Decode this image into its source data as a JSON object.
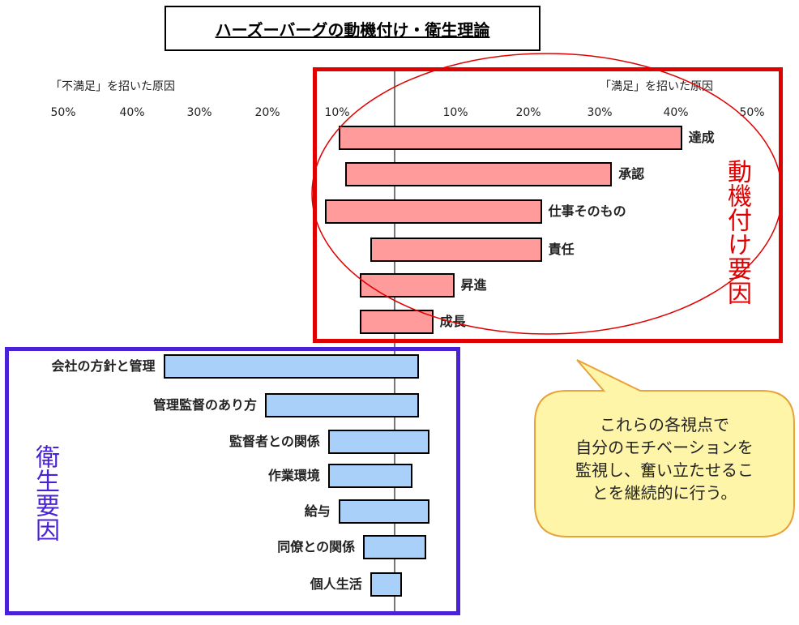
{
  "title": "ハーズーバーグの動機付け・衛生理論",
  "left_caption": "「不満足」を招いた原因",
  "right_caption": "「満足」を招いた原因",
  "left_ticks": [
    "50%",
    "40%",
    "30%",
    "20%",
    "10%"
  ],
  "right_ticks": [
    "10%",
    "20%",
    "30%",
    "40%",
    "50%"
  ],
  "motivator_label": "動機付け要因",
  "hygiene_label": "衛生要因",
  "callout": [
    "これらの各視点で",
    "自分のモチベーションを",
    "監視し、奮い立たせるこ",
    "とを継続的に行う。"
  ],
  "colors": {
    "motivator": "#ff9b9b",
    "hygiene": "#a8d0f8",
    "motivator_frame": "#e00000",
    "hygiene_frame": "#4a22d6",
    "callout_fill": "#fff5a8",
    "callout_border": "#e8a23a"
  },
  "chart_data": {
    "type": "bar",
    "orientation": "horizontal-diverging",
    "title": "ハーズーバーグの動機付け・衛生理論",
    "xlabel_left": "「不満足」を招いた原因",
    "xlabel_right": "「満足」を招いた原因",
    "xlim": [
      -50,
      50
    ],
    "series": [
      {
        "group": "motivator",
        "categories": [
          "達成",
          "承認",
          "仕事そのもの",
          "責任",
          "昇進",
          "成長"
        ],
        "dissatisfaction": [
          8,
          7,
          10,
          3.5,
          5,
          5
        ],
        "satisfaction": [
          41,
          31,
          21,
          21,
          8.5,
          5.5
        ]
      },
      {
        "group": "hygiene",
        "categories": [
          "会社の方針と管理",
          "管理監督のあり方",
          "監督者との関係",
          "作業環境",
          "給与",
          "同僚との関係",
          "個人生活"
        ],
        "dissatisfaction": [
          33,
          18.5,
          9.5,
          9.5,
          8,
          4.5,
          3.5
        ],
        "satisfaction": [
          3.5,
          3.5,
          5,
          2.5,
          5,
          4.5,
          1
        ]
      }
    ]
  }
}
